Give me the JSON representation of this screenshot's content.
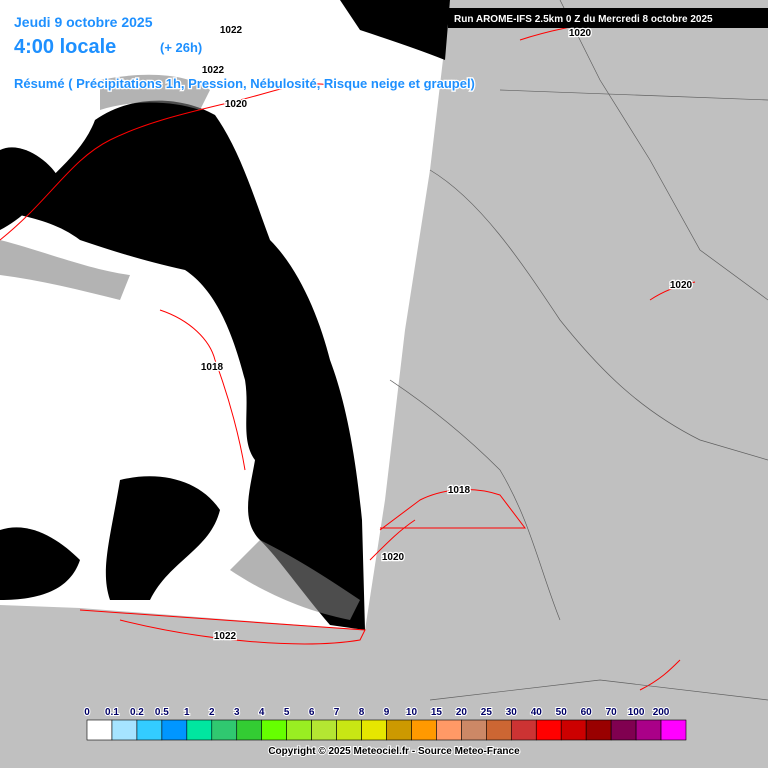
{
  "header": {
    "date": "Jeudi 9 octobre 2025",
    "time": "4:00 locale",
    "lead": "(+ 26h)",
    "subtitle": "Résumé ( Précipitations 1h, Pression, Nébulosité, Risque neige et graupel)"
  },
  "run": "Run AROME-IFS 2.5km 0 Z du Mercredi 8 octobre 2025",
  "isobar_labels": [
    "1022",
    "1022",
    "1020",
    "1020",
    "1020",
    "1018",
    "1018",
    "1020",
    "1022"
  ],
  "legend": {
    "items": [
      {
        "label": "0",
        "color": "#ffffff"
      },
      {
        "label": "0.1",
        "color": "#a6e4ff"
      },
      {
        "label": "0.2",
        "color": "#33ccff"
      },
      {
        "label": "0.5",
        "color": "#0096ff"
      },
      {
        "label": "1",
        "color": "#00e6a0"
      },
      {
        "label": "2",
        "color": "#30c870"
      },
      {
        "label": "3",
        "color": "#33cc33"
      },
      {
        "label": "4",
        "color": "#66ff00"
      },
      {
        "label": "5",
        "color": "#99ee22"
      },
      {
        "label": "6",
        "color": "#b4e632"
      },
      {
        "label": "7",
        "color": "#c8e614"
      },
      {
        "label": "8",
        "color": "#e6e600"
      },
      {
        "label": "9",
        "color": "#cc9900"
      },
      {
        "label": "10",
        "color": "#ff9900"
      },
      {
        "label": "15",
        "color": "#ff9966"
      },
      {
        "label": "20",
        "color": "#cc8866"
      },
      {
        "label": "25",
        "color": "#cc6633"
      },
      {
        "label": "30",
        "color": "#cc3333"
      },
      {
        "label": "40",
        "color": "#ff0000"
      },
      {
        "label": "50",
        "color": "#cc0000"
      },
      {
        "label": "60",
        "color": "#990000"
      },
      {
        "label": "70",
        "color": "#800050"
      },
      {
        "label": "100",
        "color": "#aa0088"
      },
      {
        "label": "200",
        "color": "#ff00ff"
      }
    ]
  },
  "footer": "Copyright © 2025 Meteociel.fr - Source Meteo-France"
}
